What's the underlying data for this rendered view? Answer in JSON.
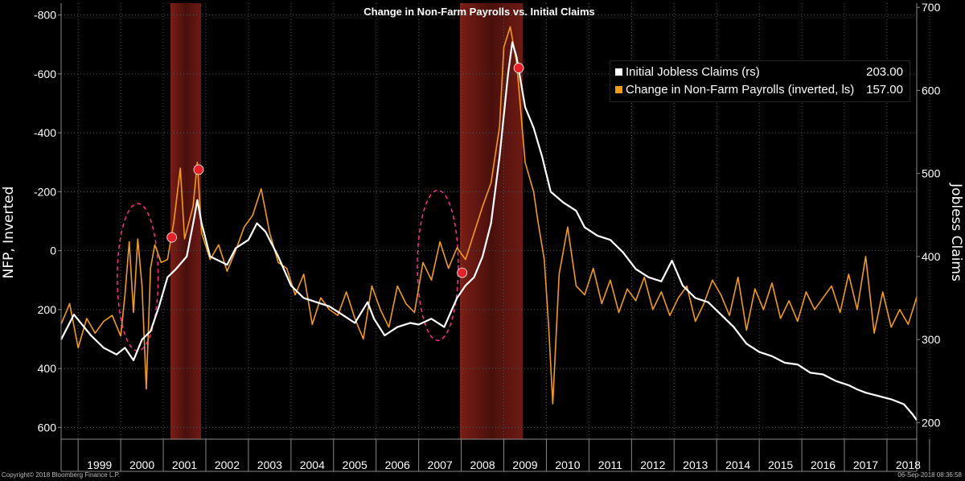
{
  "chart_data": {
    "type": "line",
    "title": "Change in Non-Farm Payrolls vs. Initial Claims",
    "ylabel_left": "NFP, Inverted",
    "ylabel_right": "Jobless Claims",
    "x_start": 1998.6,
    "x_end": 2018.7,
    "x_ticks": [
      "1999",
      "2000",
      "2001",
      "2002",
      "2003",
      "2004",
      "2005",
      "2006",
      "2007",
      "2008",
      "2009",
      "2010",
      "2011",
      "2012",
      "2013",
      "2014",
      "2015",
      "2016",
      "2017",
      "2018"
    ],
    "y_left_range": [
      640,
      -840
    ],
    "y_left_ticks": [
      "-800",
      "-600",
      "-400",
      "-200",
      "0",
      "200",
      "400",
      "600"
    ],
    "y_left_tick_values": [
      -800,
      -600,
      -400,
      -200,
      0,
      200,
      400,
      600
    ],
    "y_right_range": [
      180,
      705
    ],
    "y_right_ticks": [
      "200",
      "300",
      "400",
      "500",
      "600",
      "700"
    ],
    "y_right_tick_values": [
      200,
      300,
      400,
      500,
      600,
      700
    ],
    "recessions": [
      {
        "start": 2001.17,
        "end": 2001.89
      },
      {
        "start": 2007.97,
        "end": 2009.45
      }
    ],
    "highlight_ellipses": [
      {
        "center_x": 2000.4,
        "center_y_left": 90,
        "rx_years": 0.48,
        "ry_nfp": 250
      },
      {
        "center_x": 2007.45,
        "center_y_left": 50,
        "rx_years": 0.48,
        "ry_nfp": 255
      }
    ],
    "rec_markers": [
      {
        "x": 2001.2,
        "y_left": -45
      },
      {
        "x": 2001.83,
        "y_left": -275
      },
      {
        "x": 2008.02,
        "y_left": 75
      },
      {
        "x": 2009.35,
        "y_left": -620
      }
    ],
    "series": [
      {
        "name": "Initial Jobless Claims (rs)",
        "last_value": "203.00",
        "color": "#ffffff",
        "axis": "right",
        "points": [
          [
            1998.6,
            300
          ],
          [
            1998.9,
            330
          ],
          [
            1999.3,
            305
          ],
          [
            1999.6,
            290
          ],
          [
            1999.9,
            282
          ],
          [
            2000.1,
            290
          ],
          [
            2000.3,
            275
          ],
          [
            2000.5,
            300
          ],
          [
            2000.7,
            310
          ],
          [
            2000.9,
            340
          ],
          [
            2001.1,
            375
          ],
          [
            2001.3,
            385
          ],
          [
            2001.55,
            400
          ],
          [
            2001.72,
            445
          ],
          [
            2001.8,
            468
          ],
          [
            2001.9,
            440
          ],
          [
            2002.1,
            400
          ],
          [
            2002.3,
            395
          ],
          [
            2002.5,
            390
          ],
          [
            2002.7,
            410
          ],
          [
            2003.0,
            420
          ],
          [
            2003.2,
            440
          ],
          [
            2003.4,
            430
          ],
          [
            2003.7,
            400
          ],
          [
            2004.0,
            365
          ],
          [
            2004.3,
            350
          ],
          [
            2004.6,
            345
          ],
          [
            2004.9,
            340
          ],
          [
            2005.2,
            330
          ],
          [
            2005.5,
            320
          ],
          [
            2005.8,
            345
          ],
          [
            2005.95,
            325
          ],
          [
            2006.2,
            305
          ],
          [
            2006.5,
            315
          ],
          [
            2006.8,
            320
          ],
          [
            2007.0,
            318
          ],
          [
            2007.3,
            325
          ],
          [
            2007.6,
            315
          ],
          [
            2007.9,
            350
          ],
          [
            2008.1,
            365
          ],
          [
            2008.3,
            375
          ],
          [
            2008.5,
            400
          ],
          [
            2008.7,
            440
          ],
          [
            2008.9,
            520
          ],
          [
            2009.1,
            620
          ],
          [
            2009.2,
            658
          ],
          [
            2009.3,
            640
          ],
          [
            2009.5,
            580
          ],
          [
            2009.7,
            555
          ],
          [
            2009.9,
            520
          ],
          [
            2010.1,
            478
          ],
          [
            2010.4,
            465
          ],
          [
            2010.7,
            455
          ],
          [
            2010.9,
            435
          ],
          [
            2011.2,
            425
          ],
          [
            2011.5,
            420
          ],
          [
            2011.8,
            405
          ],
          [
            2012.1,
            385
          ],
          [
            2012.4,
            375
          ],
          [
            2012.7,
            370
          ],
          [
            2012.95,
            395
          ],
          [
            2013.2,
            365
          ],
          [
            2013.5,
            350
          ],
          [
            2013.8,
            345
          ],
          [
            2014.1,
            330
          ],
          [
            2014.4,
            315
          ],
          [
            2014.7,
            295
          ],
          [
            2015.0,
            285
          ],
          [
            2015.3,
            280
          ],
          [
            2015.6,
            272
          ],
          [
            2015.9,
            270
          ],
          [
            2016.2,
            260
          ],
          [
            2016.5,
            258
          ],
          [
            2016.8,
            250
          ],
          [
            2017.1,
            245
          ],
          [
            2017.3,
            240
          ],
          [
            2017.5,
            236
          ],
          [
            2017.8,
            232
          ],
          [
            2018.1,
            228
          ],
          [
            2018.4,
            222
          ],
          [
            2018.6,
            210
          ],
          [
            2018.7,
            203
          ]
        ]
      },
      {
        "name": "Change in Non-Farm Payrolls (inverted, ls)",
        "last_value": "157.00",
        "color": "#f39c12",
        "axis": "left",
        "points": [
          [
            1998.6,
            250
          ],
          [
            1998.8,
            180
          ],
          [
            1999.0,
            330
          ],
          [
            1999.2,
            230
          ],
          [
            1999.4,
            280
          ],
          [
            1999.6,
            240
          ],
          [
            1999.8,
            220
          ],
          [
            2000.0,
            290
          ],
          [
            2000.1,
            150
          ],
          [
            2000.2,
            -30
          ],
          [
            2000.3,
            210
          ],
          [
            2000.4,
            -40
          ],
          [
            2000.5,
            120
          ],
          [
            2000.6,
            470
          ],
          [
            2000.7,
            60
          ],
          [
            2000.8,
            -20
          ],
          [
            2000.95,
            40
          ],
          [
            2001.1,
            30
          ],
          [
            2001.25,
            -100
          ],
          [
            2001.4,
            -280
          ],
          [
            2001.5,
            -40
          ],
          [
            2001.7,
            -150
          ],
          [
            2001.8,
            -300
          ],
          [
            2001.9,
            -60
          ],
          [
            2002.1,
            30
          ],
          [
            2002.3,
            -20
          ],
          [
            2002.5,
            70
          ],
          [
            2002.7,
            0
          ],
          [
            2002.9,
            -80
          ],
          [
            2003.1,
            -120
          ],
          [
            2003.3,
            -210
          ],
          [
            2003.5,
            -60
          ],
          [
            2003.7,
            40
          ],
          [
            2003.9,
            60
          ],
          [
            2004.1,
            150
          ],
          [
            2004.3,
            80
          ],
          [
            2004.5,
            250
          ],
          [
            2004.7,
            160
          ],
          [
            2004.9,
            200
          ],
          [
            2005.1,
            220
          ],
          [
            2005.3,
            140
          ],
          [
            2005.5,
            230
          ],
          [
            2005.7,
            300
          ],
          [
            2005.9,
            120
          ],
          [
            2006.1,
            200
          ],
          [
            2006.3,
            260
          ],
          [
            2006.5,
            120
          ],
          [
            2006.7,
            180
          ],
          [
            2006.9,
            210
          ],
          [
            2007.1,
            40
          ],
          [
            2007.3,
            100
          ],
          [
            2007.5,
            -30
          ],
          [
            2007.7,
            60
          ],
          [
            2007.9,
            -10
          ],
          [
            2008.1,
            30
          ],
          [
            2008.3,
            -60
          ],
          [
            2008.5,
            -150
          ],
          [
            2008.7,
            -230
          ],
          [
            2008.9,
            -420
          ],
          [
            2009.0,
            -690
          ],
          [
            2009.15,
            -760
          ],
          [
            2009.3,
            -640
          ],
          [
            2009.5,
            -300
          ],
          [
            2009.7,
            -200
          ],
          [
            2009.8,
            -100
          ],
          [
            2009.95,
            30
          ],
          [
            2010.05,
            250
          ],
          [
            2010.15,
            520
          ],
          [
            2010.3,
            80
          ],
          [
            2010.5,
            -80
          ],
          [
            2010.7,
            120
          ],
          [
            2010.9,
            150
          ],
          [
            2011.1,
            60
          ],
          [
            2011.3,
            180
          ],
          [
            2011.5,
            100
          ],
          [
            2011.7,
            210
          ],
          [
            2011.9,
            130
          ],
          [
            2012.1,
            170
          ],
          [
            2012.3,
            90
          ],
          [
            2012.5,
            200
          ],
          [
            2012.7,
            140
          ],
          [
            2012.9,
            220
          ],
          [
            2013.1,
            160
          ],
          [
            2013.3,
            120
          ],
          [
            2013.5,
            240
          ],
          [
            2013.7,
            180
          ],
          [
            2013.9,
            100
          ],
          [
            2014.1,
            150
          ],
          [
            2014.3,
            220
          ],
          [
            2014.5,
            90
          ],
          [
            2014.7,
            270
          ],
          [
            2014.9,
            130
          ],
          [
            2015.1,
            200
          ],
          [
            2015.3,
            110
          ],
          [
            2015.5,
            230
          ],
          [
            2015.7,
            170
          ],
          [
            2015.9,
            240
          ],
          [
            2016.1,
            140
          ],
          [
            2016.3,
            200
          ],
          [
            2016.5,
            160
          ],
          [
            2016.7,
            120
          ],
          [
            2016.9,
            210
          ],
          [
            2017.1,
            80
          ],
          [
            2017.3,
            200
          ],
          [
            2017.5,
            20
          ],
          [
            2017.7,
            280
          ],
          [
            2017.9,
            140
          ],
          [
            2018.1,
            260
          ],
          [
            2018.3,
            200
          ],
          [
            2018.5,
            250
          ],
          [
            2018.7,
            157
          ]
        ]
      }
    ]
  },
  "footer": {
    "left": "Copyright© 2018 Bloomberg Finance L.P.",
    "right": "06-Sep-2018 08:36:58"
  }
}
